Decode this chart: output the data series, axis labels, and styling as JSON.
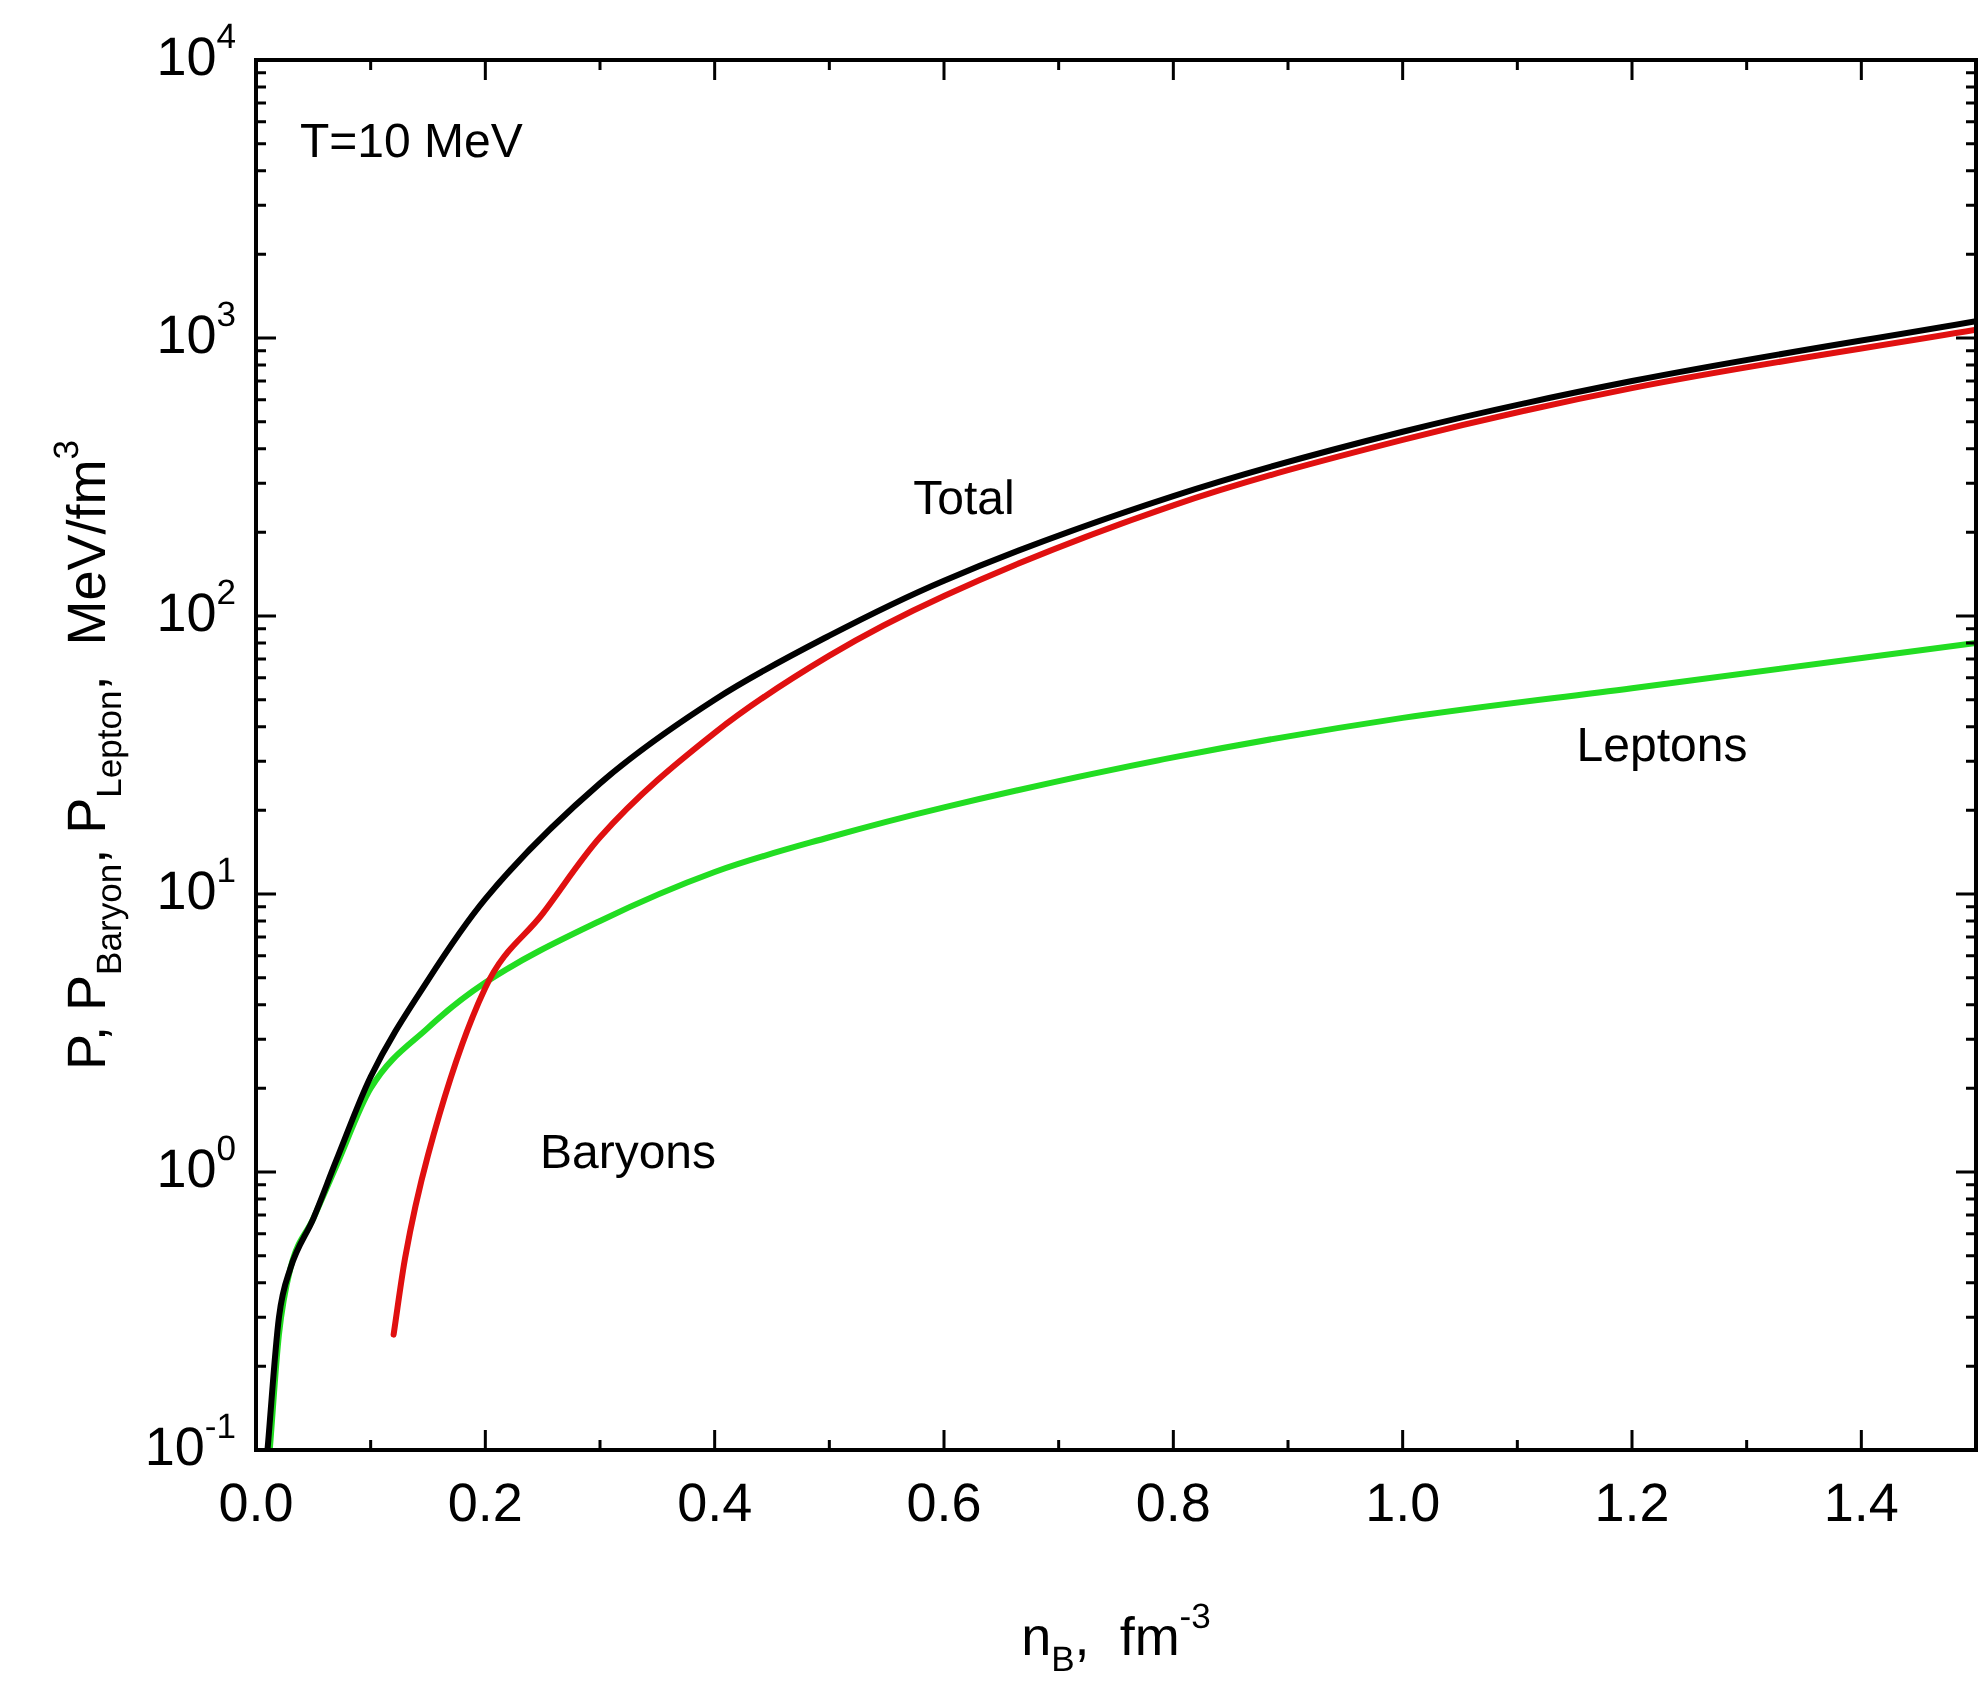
{
  "chart_data": {
    "type": "line",
    "xlabel": "n$_{B}$,  fm$^{-3}$",
    "ylabel": "P, P$_{Baryon}$, P$_{Lepton}$,  MeV/fm$^{3}$",
    "log": "y",
    "grid": false,
    "legend": false,
    "marker": "none",
    "line_style": "solid",
    "xlim": [
      0,
      1.5
    ],
    "ylim": [
      0.1,
      10000
    ],
    "xticks": [
      {
        "value": 0,
        "label": "0.0"
      },
      {
        "value": 0.1,
        "label": null
      },
      {
        "value": 0.2,
        "label": "0.2"
      },
      {
        "value": 0.3,
        "label": null
      },
      {
        "value": 0.4,
        "label": "0.4"
      },
      {
        "value": 0.5,
        "label": null
      },
      {
        "value": 0.6,
        "label": "0.6"
      },
      {
        "value": 0.7,
        "label": null
      },
      {
        "value": 0.8,
        "label": "0.8"
      },
      {
        "value": 0.9,
        "label": null
      },
      {
        "value": 1,
        "label": "1.0"
      },
      {
        "value": 1.1,
        "label": null
      },
      {
        "value": 1.2,
        "label": "1.2"
      },
      {
        "value": 1.3,
        "label": null
      },
      {
        "value": 1.4,
        "label": "1.4"
      },
      {
        "value": 1.5,
        "label": null
      }
    ],
    "yticks": [
      {
        "value": 0.1,
        "label": "10$^{-1}$"
      },
      {
        "value": 0.2,
        "label": null
      },
      {
        "value": 0.3,
        "label": null
      },
      {
        "value": 0.4,
        "label": null
      },
      {
        "value": 0.5,
        "label": null
      },
      {
        "value": 0.6,
        "label": null
      },
      {
        "value": 0.7,
        "label": null
      },
      {
        "value": 0.8,
        "label": null
      },
      {
        "value": 0.9,
        "label": null
      },
      {
        "value": 1,
        "label": "10$^{0}$"
      },
      {
        "value": 2,
        "label": null
      },
      {
        "value": 3,
        "label": null
      },
      {
        "value": 4,
        "label": null
      },
      {
        "value": 5,
        "label": null
      },
      {
        "value": 6,
        "label": null
      },
      {
        "value": 7,
        "label": null
      },
      {
        "value": 8,
        "label": null
      },
      {
        "value": 9,
        "label": null
      },
      {
        "value": 10,
        "label": "10$^{1}$"
      },
      {
        "value": 20,
        "label": null
      },
      {
        "value": 30,
        "label": null
      },
      {
        "value": 40,
        "label": null
      },
      {
        "value": 50,
        "label": null
      },
      {
        "value": 60,
        "label": null
      },
      {
        "value": 70,
        "label": null
      },
      {
        "value": 80,
        "label": null
      },
      {
        "value": 90,
        "label": null
      },
      {
        "value": 100,
        "label": "10$^{2}$"
      },
      {
        "value": 200,
        "label": null
      },
      {
        "value": 300,
        "label": null
      },
      {
        "value": 400,
        "label": null
      },
      {
        "value": 500,
        "label": null
      },
      {
        "value": 600,
        "label": null
      },
      {
        "value": 700,
        "label": null
      },
      {
        "value": 800,
        "label": null
      },
      {
        "value": 900,
        "label": null
      },
      {
        "value": 1000,
        "label": "10$^{3}$"
      },
      {
        "value": 2000,
        "label": null
      },
      {
        "value": 3000,
        "label": null
      },
      {
        "value": 4000,
        "label": null
      },
      {
        "value": 5000,
        "label": null
      },
      {
        "value": 6000,
        "label": null
      },
      {
        "value": 7000,
        "label": null
      },
      {
        "value": 8000,
        "label": null
      },
      {
        "value": 9000,
        "label": null
      },
      {
        "value": 10000,
        "label": "10$^{4}$"
      }
    ],
    "series": [
      {
        "name": "Total",
        "color": "#000000",
        "x": [
          0.01,
          0.02,
          0.03,
          0.05,
          0.07,
          0.1,
          0.15,
          0.2,
          0.3,
          0.4,
          0.5,
          0.6,
          0.8,
          1.0,
          1.2,
          1.5
        ],
        "values": [
          0.1,
          0.3,
          0.45,
          0.68,
          1.1,
          2.2,
          4.9,
          9.6,
          25,
          50,
          85,
          134,
          270,
          460,
          700,
          1150
        ]
      },
      {
        "name": "Baryons",
        "color": "#e01010",
        "x": [
          0.12,
          0.13,
          0.15,
          0.2,
          0.25,
          0.3,
          0.4,
          0.5,
          0.6,
          0.8,
          1.0,
          1.2,
          1.5
        ],
        "values": [
          0.26,
          0.49,
          1.15,
          4.6,
          8.5,
          16,
          38,
          72,
          118,
          250,
          430,
          660,
          1070
        ]
      },
      {
        "name": "Leptons",
        "color": "#22dd22",
        "x": [
          0.012,
          0.02,
          0.03,
          0.05,
          0.07,
          0.1,
          0.15,
          0.2,
          0.3,
          0.4,
          0.5,
          0.6,
          0.8,
          1.0,
          1.2,
          1.5
        ],
        "values": [
          0.1,
          0.26,
          0.45,
          0.68,
          1.05,
          2.0,
          3.3,
          4.8,
          8.0,
          12,
          16,
          20.5,
          31,
          43,
          55,
          80
        ]
      }
    ],
    "annotations": [
      "T=10 MeV"
    ]
  }
}
